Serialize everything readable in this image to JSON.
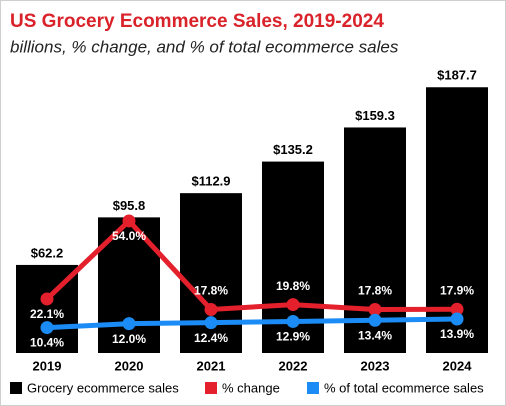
{
  "chart_data": {
    "type": "bar_line",
    "title": "US Grocery Ecommerce Sales, 2019-2024",
    "subtitle": "billions, % change, and % of total ecommerce sales",
    "categories": [
      "2019",
      "2020",
      "2021",
      "2022",
      "2023",
      "2024"
    ],
    "series": [
      {
        "name": "Grocery ecommerce sales",
        "color": "#000000",
        "type": "bar",
        "values": [
          62.2,
          95.8,
          112.9,
          135.2,
          159.3,
          187.7
        ],
        "value_labels": [
          "$62.2",
          "$95.8",
          "$112.9",
          "$135.2",
          "$159.3",
          "$187.7"
        ]
      },
      {
        "name": "% change",
        "color": "#e3202c",
        "type": "line",
        "axis": "y2",
        "values": [
          22.1,
          54.0,
          17.8,
          19.8,
          17.8,
          17.9
        ],
        "value_labels": [
          "22.1%",
          "54.0%",
          "17.8%",
          "19.8%",
          "17.8%",
          "17.9%"
        ]
      },
      {
        "name": "% of total ecommerce sales",
        "color": "#1b8cf5",
        "type": "line",
        "axis": "y2",
        "values": [
          10.4,
          12.0,
          12.4,
          12.9,
          13.4,
          13.9
        ],
        "value_labels": [
          "10.4%",
          "12.0%",
          "12.4%",
          "12.9%",
          "13.4%",
          "13.9%"
        ]
      }
    ],
    "ylim": [
      0,
      190
    ],
    "y2lim": [
      0,
      110
    ]
  }
}
